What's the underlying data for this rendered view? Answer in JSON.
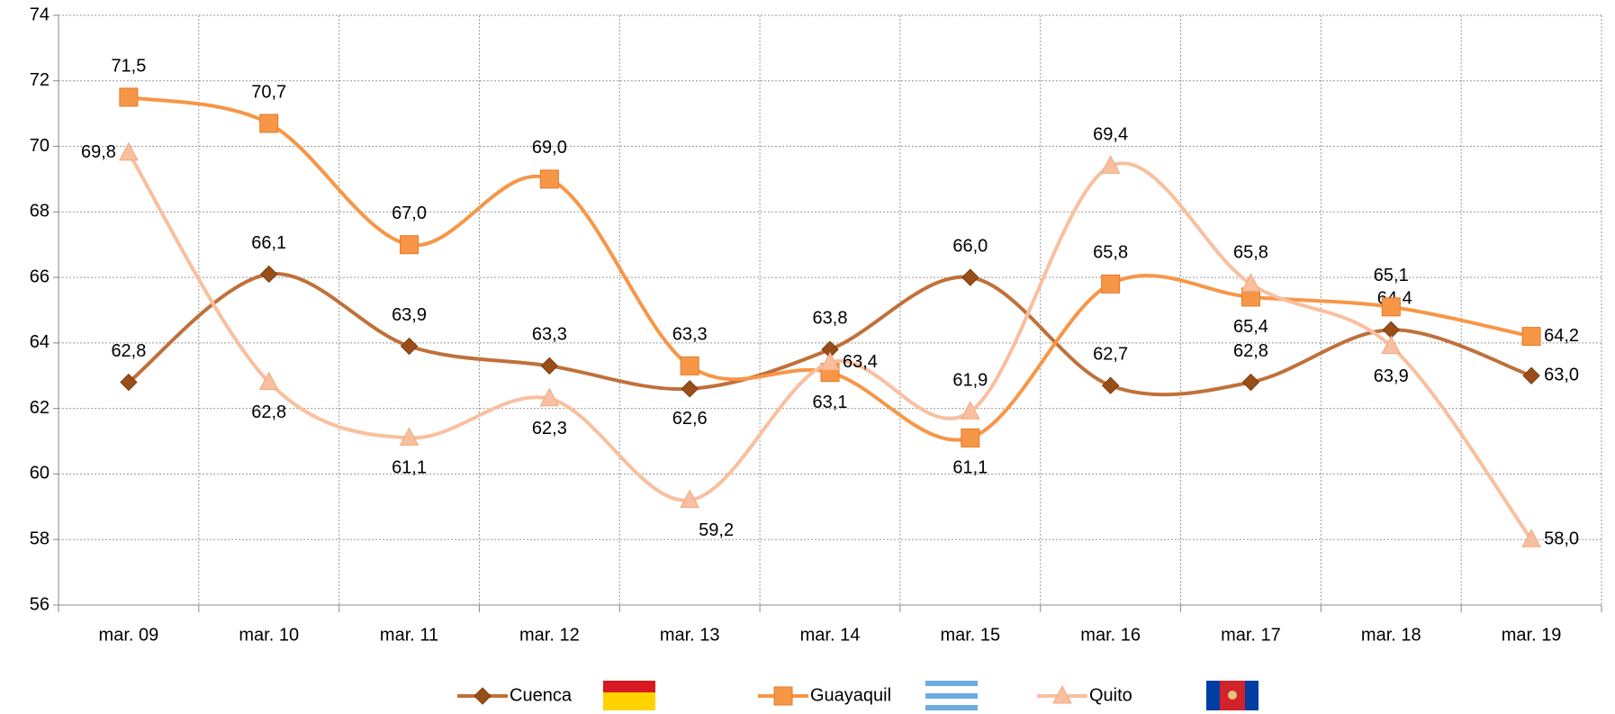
{
  "chart_data": {
    "type": "line",
    "categories": [
      "mar. 09",
      "mar. 10",
      "mar. 11",
      "mar. 12",
      "mar. 13",
      "mar. 14",
      "mar. 15",
      "mar. 16",
      "mar. 17",
      "mar. 18",
      "mar. 19"
    ],
    "ylim": [
      56,
      74
    ],
    "yticks": [
      56,
      58,
      60,
      62,
      64,
      66,
      68,
      70,
      72,
      74
    ],
    "grid": true,
    "series": [
      {
        "name": "Cuenca",
        "color": "#c0703a",
        "marker": "diamond",
        "values": [
          62.8,
          66.1,
          63.9,
          63.3,
          62.6,
          63.8,
          66.0,
          62.7,
          62.8,
          64.4,
          63.0
        ],
        "value_labels": [
          "62,8",
          "66,1",
          "63,9",
          "63,3",
          "62,6",
          "63,8",
          "66,0",
          "62,7",
          "62,8",
          "64,4",
          "63,0"
        ]
      },
      {
        "name": "Guayaquil",
        "color": "#f79646",
        "marker": "square",
        "values": [
          71.5,
          70.7,
          67.0,
          69.0,
          63.3,
          63.1,
          61.1,
          65.8,
          65.4,
          65.1,
          64.2
        ],
        "value_labels": [
          "71,5",
          "70,7",
          "67,0",
          "69,0",
          "63,3",
          "63,1",
          "61,1",
          "65,8",
          "65,4",
          "65,1",
          "64,2"
        ]
      },
      {
        "name": "Quito",
        "color": "#f9bf9f",
        "marker": "triangle",
        "values": [
          69.8,
          62.8,
          61.1,
          62.3,
          59.2,
          63.4,
          61.9,
          69.4,
          65.8,
          63.9,
          58.0
        ],
        "value_labels": [
          "69,8",
          "62,8",
          "61,1",
          "62,3",
          "59,2",
          "63,4",
          "61,9",
          "69,4",
          "65,8",
          "63,9",
          "58,0"
        ]
      }
    ]
  }
}
